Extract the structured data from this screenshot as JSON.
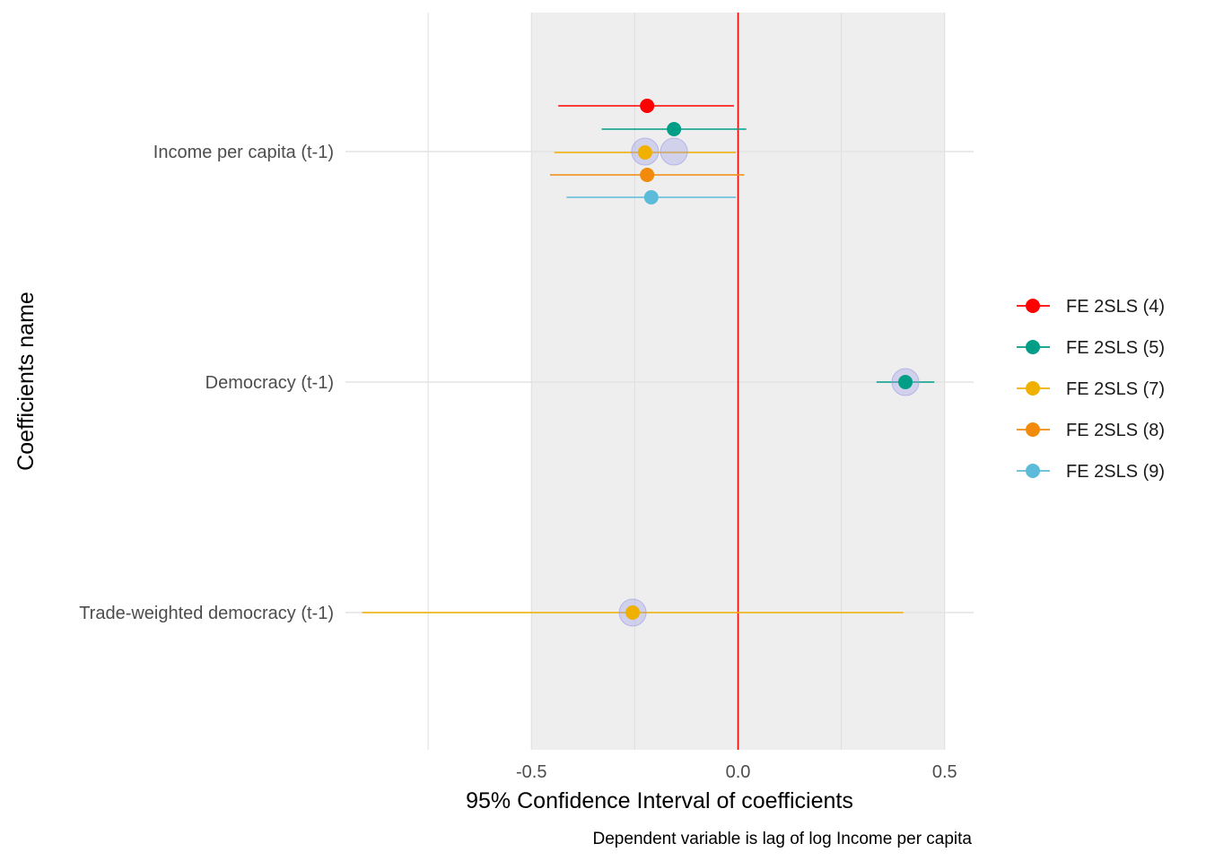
{
  "chart_data": {
    "type": "scatter",
    "subtype": "coefficient-plot-with-error-bars",
    "xlabel": "95% Confidence Interval of coefficients",
    "ylabel": "Coefficients name",
    "caption": "Dependent variable is lag of log Income per capita",
    "xlim": [
      -0.95,
      0.57
    ],
    "x_ticks": [
      -0.5,
      0.0,
      0.5
    ],
    "x_tick_labels": [
      "-0.5",
      "0.0",
      "0.5"
    ],
    "shaded_x_range": [
      -0.5,
      0.5
    ],
    "reference_line": {
      "x": 0,
      "color": "#ff0000"
    },
    "categories": [
      "Income per capita (t-1)",
      "Democracy (t-1)",
      "Trade-weighted democracy (t-1)"
    ],
    "grid": true,
    "legend_position": "right",
    "series": [
      {
        "name": "FE 2SLS (4)",
        "color": "#ff0000",
        "points": [
          {
            "category": "Income per capita (t-1)",
            "estimate": -0.22,
            "low": -0.435,
            "high": -0.01
          }
        ]
      },
      {
        "name": "FE 2SLS (5)",
        "color": "#009e87",
        "points": [
          {
            "category": "Income per capita (t-1)",
            "estimate": -0.155,
            "low": -0.33,
            "high": 0.02
          },
          {
            "category": "Democracy (t-1)",
            "estimate": 0.405,
            "low": 0.335,
            "high": 0.475
          }
        ]
      },
      {
        "name": "FE 2SLS (7)",
        "color": "#f0b000",
        "points": [
          {
            "category": "Income per capita (t-1)",
            "estimate": -0.225,
            "low": -0.445,
            "high": -0.005
          },
          {
            "category": "Trade-weighted democracy (t-1)",
            "estimate": -0.255,
            "low": -0.91,
            "high": 0.4
          }
        ]
      },
      {
        "name": "FE 2SLS (8)",
        "color": "#f28a0c",
        "points": [
          {
            "category": "Income per capita (t-1)",
            "estimate": -0.22,
            "low": -0.455,
            "high": 0.015
          }
        ]
      },
      {
        "name": "FE 2SLS (9)",
        "color": "#5bbbd8",
        "points": [
          {
            "category": "Income per capita (t-1)",
            "estimate": -0.21,
            "low": -0.415,
            "high": -0.005
          }
        ]
      }
    ],
    "highlight_markers": [
      {
        "category": "Income per capita (t-1)",
        "x": -0.225
      },
      {
        "category": "Income per capita (t-1)",
        "x": -0.155
      },
      {
        "category": "Democracy (t-1)",
        "x": 0.405
      },
      {
        "category": "Trade-weighted democracy (t-1)",
        "x": -0.255
      }
    ],
    "highlight_color": "#9a9ae6"
  }
}
